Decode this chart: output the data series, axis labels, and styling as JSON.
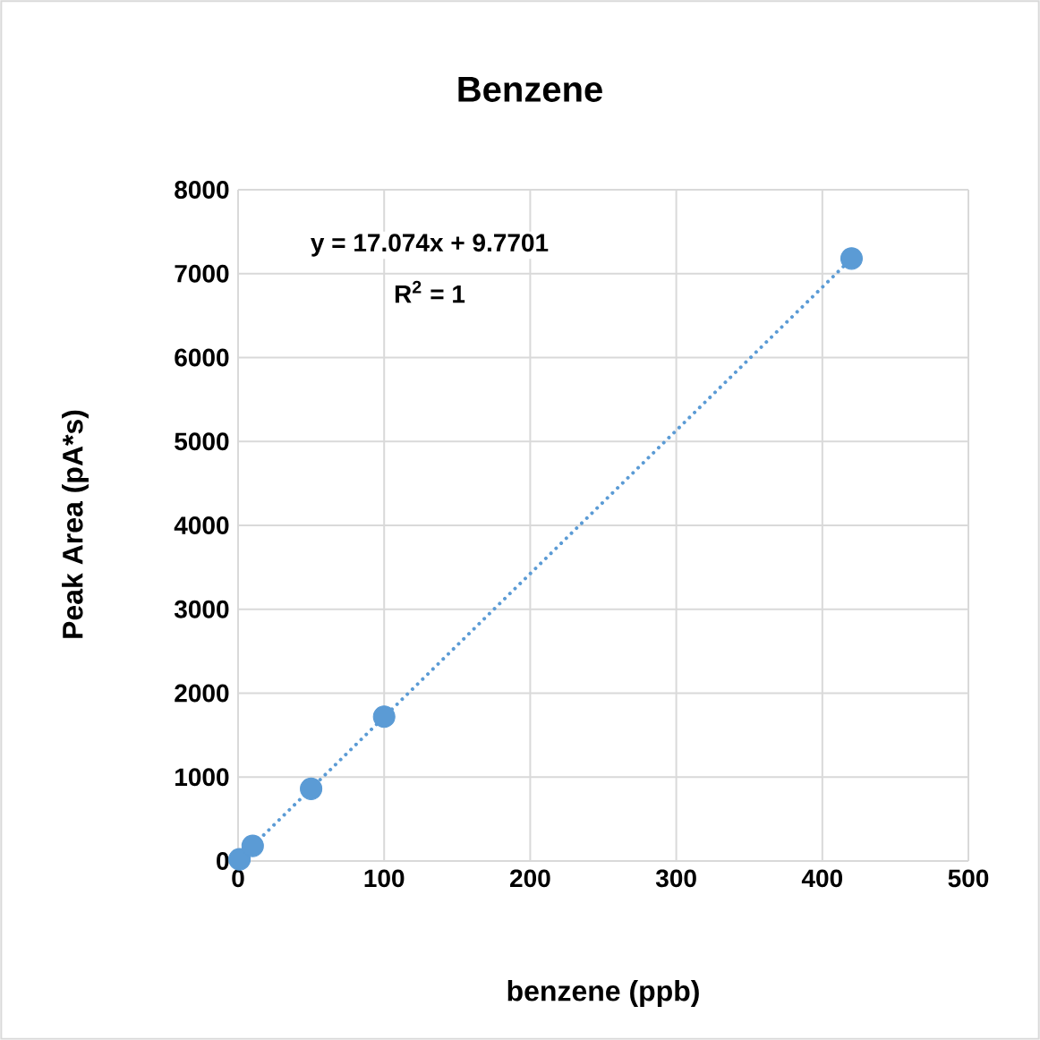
{
  "chart_data": {
    "type": "scatter",
    "title": "Benzene",
    "xlabel": "benzene (ppb)",
    "ylabel": "Peak Area (pA*s)",
    "annotations": [
      "y = 17.074x + 9.7701",
      "R$^{2}$ = 1"
    ],
    "series": [
      {
        "color": "#5b9bd5",
        "marker": "circle",
        "x": [
          1,
          10,
          50,
          100,
          420
        ],
        "values": [
          20,
          180,
          860,
          1720,
          7180
        ]
      },
      {
        "type": "line",
        "color": "#5b9bd5",
        "line_style": "dotted",
        "marker": "none",
        "x": [
          0,
          420
        ],
        "values": [
          10,
          7180
        ]
      }
    ],
    "xlim": [
      0,
      500
    ],
    "ylim": [
      0,
      8000
    ],
    "xticks": [
      0,
      100,
      200,
      300,
      400,
      500
    ],
    "yticks": [
      0,
      1000,
      2000,
      3000,
      4000,
      5000,
      6000,
      7000,
      8000
    ],
    "grid": true
  }
}
